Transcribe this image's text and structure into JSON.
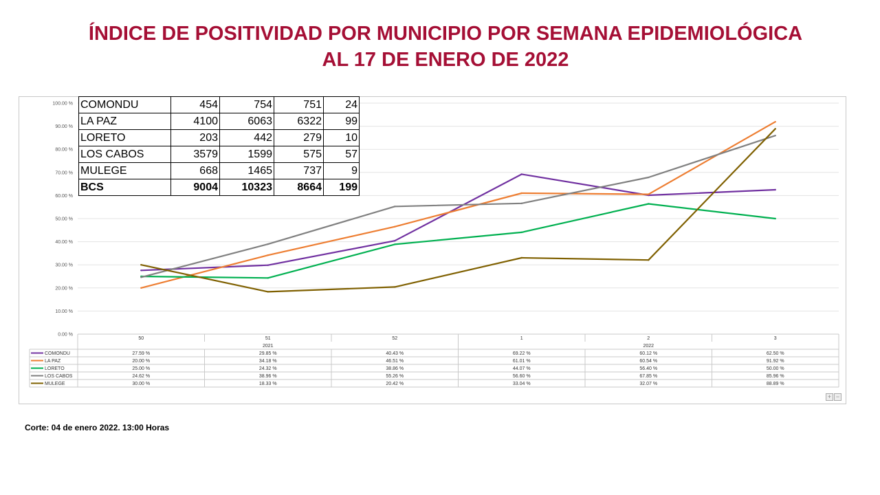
{
  "title": {
    "line1": "ÍNDICE DE POSITIVIDAD POR MUNICIPIO POR SEMANA EPIDEMIOLÓGICA",
    "line2": "AL 17 DE ENERO DE 2022"
  },
  "footnote": "Corte: 04  de enero 2022. 13:00 Horas",
  "zoom": {
    "plus": "+",
    "minus": "−"
  },
  "summary_table": {
    "rows": [
      {
        "name": "COMONDU",
        "v1": "454",
        "v2": "754",
        "v3": "751",
        "v4": "24",
        "bold": false
      },
      {
        "name": "LA PAZ",
        "v1": "4100",
        "v2": "6063",
        "v3": "6322",
        "v4": "99",
        "bold": false
      },
      {
        "name": "LORETO",
        "v1": "203",
        "v2": "442",
        "v3": "279",
        "v4": "10",
        "bold": false
      },
      {
        "name": "LOS CABOS",
        "v1": "3579",
        "v2": "1599",
        "v3": "575",
        "v4": "57",
        "bold": false
      },
      {
        "name": "MULEGE",
        "v1": "668",
        "v2": "1465",
        "v3": "737",
        "v4": "9",
        "bold": false
      },
      {
        "name": "BCS",
        "v1": "9004",
        "v2": "10323",
        "v3": "8664",
        "v4": "199",
        "bold": true
      }
    ]
  },
  "chart_data": {
    "type": "line",
    "title": "",
    "xlabel": "",
    "ylabel": "",
    "ylim": [
      0,
      100
    ],
    "y_ticks": [
      "0.00 %",
      "10.00 %",
      "20.00 %",
      "30.00 %",
      "40.00 %",
      "50.00 %",
      "60.00 %",
      "70.00 %",
      "80.00 %",
      "90.00 %",
      "100.00 %"
    ],
    "grid": true,
    "legend": "data-table-below",
    "categories": [
      "50",
      "51",
      "52",
      "1",
      "2",
      "3"
    ],
    "year_groups": [
      {
        "label": "2021",
        "start": 0,
        "end": 2
      },
      {
        "label": "2022",
        "start": 3,
        "end": 5
      }
    ],
    "series": [
      {
        "name": "COMONDU",
        "color": "#7030A0",
        "values": [
          27.59,
          29.85,
          40.43,
          69.22,
          60.12,
          62.5
        ],
        "labels": [
          "27.59 %",
          "29.85 %",
          "40.43 %",
          "69.22 %",
          "60.12 %",
          "62.50 %"
        ]
      },
      {
        "name": "LA PAZ",
        "color": "#ED7D31",
        "values": [
          20.0,
          34.18,
          46.51,
          61.01,
          60.54,
          91.92
        ],
        "labels": [
          "20.00 %",
          "34.18 %",
          "46.51 %",
          "61.01 %",
          "60.54 %",
          "91.92 %"
        ]
      },
      {
        "name": "LORETO",
        "color": "#00B050",
        "values": [
          25.0,
          24.32,
          38.86,
          44.07,
          56.4,
          50.0
        ],
        "labels": [
          "25.00 %",
          "24.32 %",
          "38.86 %",
          "44.07 %",
          "56.40 %",
          "50.00 %"
        ]
      },
      {
        "name": "LOS CABOS",
        "color": "#808080",
        "values": [
          24.62,
          38.96,
          55.26,
          56.6,
          67.85,
          85.96
        ],
        "labels": [
          "24.62 %",
          "38.96 %",
          "55.26 %",
          "56.60 %",
          "67.85 %",
          "85.96 %"
        ]
      },
      {
        "name": "MULEGE",
        "color": "#7F6000",
        "values": [
          30.0,
          18.33,
          20.42,
          33.04,
          32.07,
          88.89
        ],
        "labels": [
          "30.00 %",
          "18.33 %",
          "20.42 %",
          "33.04 %",
          "32.07 %",
          "88.89 %"
        ]
      }
    ]
  }
}
